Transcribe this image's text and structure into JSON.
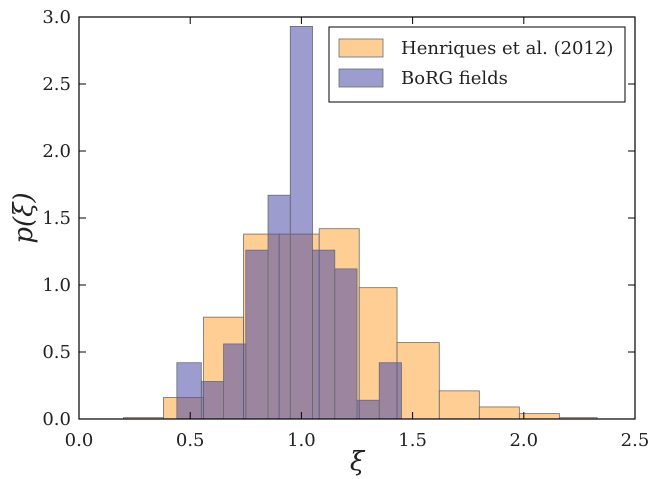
{
  "chart_data": {
    "type": "histogram",
    "xlabel": "ξ",
    "ylabel": "p(ξ)",
    "xlim": [
      0.0,
      2.5
    ],
    "ylim": [
      0.0,
      3.0
    ],
    "xticks": [
      "0.0",
      "0.5",
      "1.0",
      "1.5",
      "2.0",
      "2.5"
    ],
    "yticks": [
      "0.0",
      "0.5",
      "1.0",
      "1.5",
      "2.0",
      "2.5",
      "3.0"
    ],
    "grid": false,
    "legend_position": "top-right",
    "series": [
      {
        "name": "Henriques et al. (2012)",
        "color": "#fdb35b",
        "opacity": 0.65,
        "bins": [
          {
            "x0": 0.2,
            "x1": 0.38,
            "y": 0.01
          },
          {
            "x0": 0.38,
            "x1": 0.56,
            "y": 0.16
          },
          {
            "x0": 0.56,
            "x1": 0.74,
            "y": 0.76
          },
          {
            "x0": 0.74,
            "x1": 0.9,
            "y": 1.38
          },
          {
            "x0": 0.9,
            "x1": 1.08,
            "y": 1.38
          },
          {
            "x0": 1.08,
            "x1": 1.26,
            "y": 1.42
          },
          {
            "x0": 1.26,
            "x1": 1.43,
            "y": 0.98
          },
          {
            "x0": 1.43,
            "x1": 1.62,
            "y": 0.57
          },
          {
            "x0": 1.62,
            "x1": 1.8,
            "y": 0.21
          },
          {
            "x0": 1.8,
            "x1": 1.98,
            "y": 0.09
          },
          {
            "x0": 1.98,
            "x1": 2.16,
            "y": 0.04
          },
          {
            "x0": 2.16,
            "x1": 2.33,
            "y": 0.01
          }
        ]
      },
      {
        "name": "BoRG fields",
        "color": "#4b4aa8",
        "opacity": 0.55,
        "bins": [
          {
            "x0": 0.44,
            "x1": 0.55,
            "y": 0.42
          },
          {
            "x0": 0.55,
            "x1": 0.65,
            "y": 0.28
          },
          {
            "x0": 0.65,
            "x1": 0.75,
            "y": 0.56
          },
          {
            "x0": 0.75,
            "x1": 0.85,
            "y": 1.26
          },
          {
            "x0": 0.85,
            "x1": 0.95,
            "y": 1.67
          },
          {
            "x0": 0.95,
            "x1": 1.05,
            "y": 2.93
          },
          {
            "x0": 1.05,
            "x1": 1.15,
            "y": 1.26
          },
          {
            "x0": 1.15,
            "x1": 1.25,
            "y": 1.12
          },
          {
            "x0": 1.25,
            "x1": 1.35,
            "y": 0.14
          },
          {
            "x0": 1.35,
            "x1": 1.45,
            "y": 0.42
          }
        ]
      }
    ]
  }
}
